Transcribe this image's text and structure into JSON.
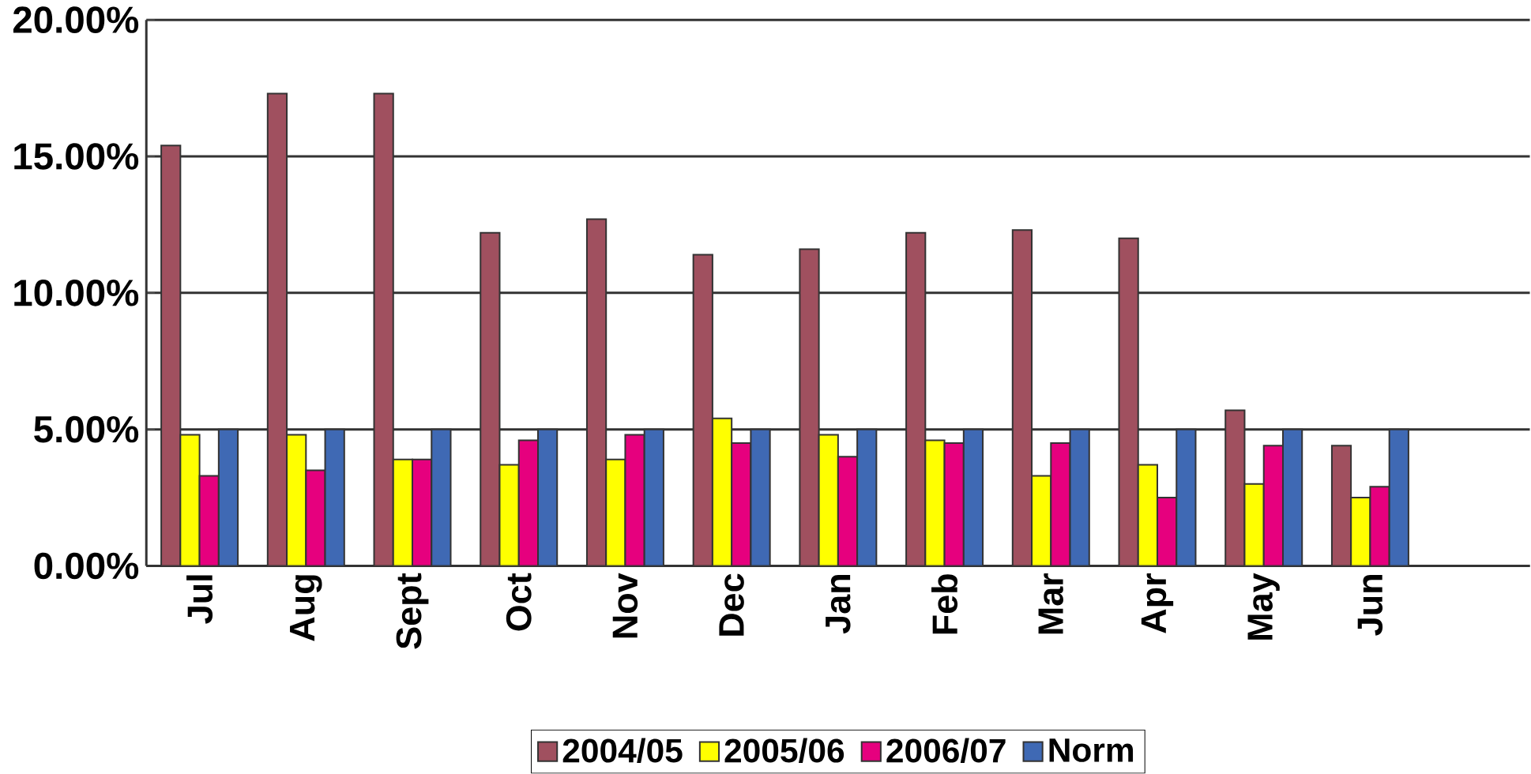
{
  "chart_data": {
    "type": "bar",
    "categories": [
      "Jul",
      "Aug",
      "Sept",
      "Oct",
      "Nov",
      "Dec",
      "Jan",
      "Feb",
      "Mar",
      "Apr",
      "May",
      "Jun"
    ],
    "series": [
      {
        "name": "2004/05",
        "color": "#a0505f",
        "values": [
          15.4,
          17.3,
          17.3,
          12.2,
          12.7,
          11.4,
          11.6,
          12.2,
          12.3,
          12.0,
          5.7,
          4.4
        ]
      },
      {
        "name": "2005/06",
        "color": "#ffff00",
        "values": [
          4.8,
          4.8,
          3.9,
          3.7,
          3.9,
          5.4,
          4.8,
          4.6,
          3.3,
          3.7,
          3.0,
          2.5
        ]
      },
      {
        "name": "2006/07",
        "color": "#e6007e",
        "values": [
          3.3,
          3.5,
          3.9,
          4.6,
          4.8,
          4.5,
          4.0,
          4.5,
          4.5,
          2.5,
          4.4,
          2.9
        ]
      },
      {
        "name": "Norm",
        "color": "#3f69b4",
        "values": [
          5,
          5,
          5,
          5,
          5,
          5,
          5,
          5,
          5,
          5,
          5,
          5
        ]
      }
    ],
    "ylim": [
      0,
      20
    ],
    "yticks": [
      {
        "value": 0,
        "label": "0.00%"
      },
      {
        "value": 5,
        "label": "5.00%"
      },
      {
        "value": 10,
        "label": "10.00%"
      },
      {
        "value": 15,
        "label": "15.00%"
      },
      {
        "value": 20,
        "label": "20.00%"
      }
    ],
    "grid": "y",
    "legend": "bottom"
  }
}
